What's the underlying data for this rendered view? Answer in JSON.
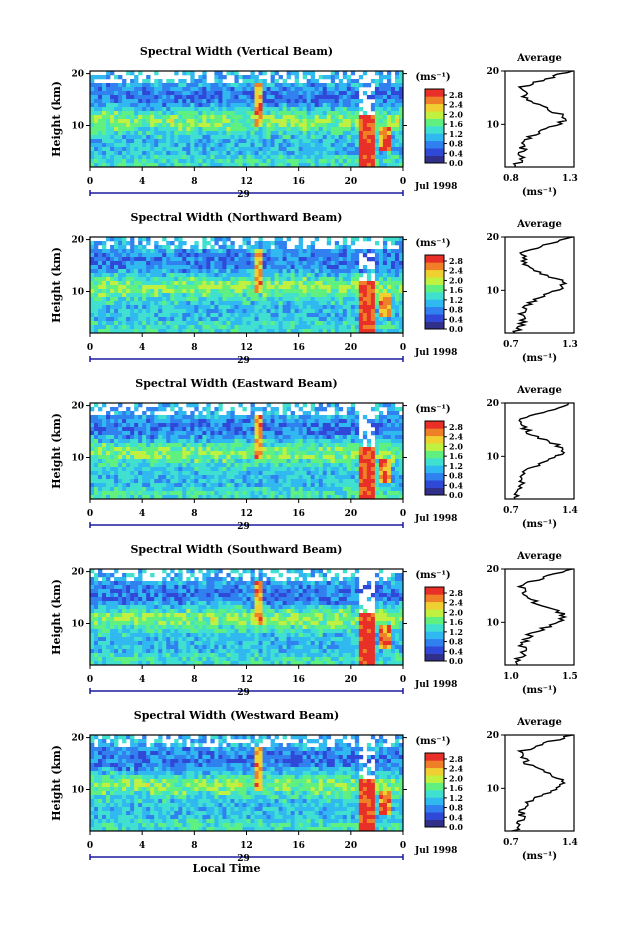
{
  "chart_data": [
    {
      "type": "heatmap",
      "title": "Spectral Width (Vertical Beam)",
      "ylabel": "Height (km)",
      "xticks": [
        "0",
        "4",
        "8",
        "12",
        "16",
        "20",
        "0"
      ],
      "yticks": [
        "20",
        "10"
      ],
      "day_label": "29",
      "date_label": "Jul 1998",
      "colorbar": {
        "unit_label": "(ms⁻¹)",
        "levels": [
          "2.8",
          "2.4",
          "2.0",
          "1.6",
          "1.2",
          "0.8",
          "0.4",
          "0.0"
        ]
      },
      "profile": {
        "title": "Average",
        "xticks": [
          "0.8",
          "1.3"
        ],
        "xlabel": "(ms⁻¹)",
        "yticks": [
          "20",
          "10"
        ],
        "xlim": [
          0.8,
          1.3
        ],
        "ylim": [
          2,
          20
        ]
      }
    },
    {
      "type": "heatmap",
      "title": "Spectral Width (Northward Beam)",
      "ylabel": "Height (km)",
      "xticks": [
        "0",
        "4",
        "8",
        "12",
        "16",
        "20",
        "0"
      ],
      "yticks": [
        "20",
        "10"
      ],
      "day_label": "29",
      "date_label": "Jul 1998",
      "colorbar": {
        "unit_label": "(ms⁻¹)",
        "levels": [
          "2.8",
          "2.4",
          "2.0",
          "1.6",
          "1.2",
          "0.8",
          "0.4",
          "0.0"
        ]
      },
      "profile": {
        "title": "Average",
        "xticks": [
          "0.7",
          "1.3"
        ],
        "xlabel": "(ms⁻¹)",
        "yticks": [
          "20",
          "10"
        ],
        "xlim": [
          0.7,
          1.3
        ],
        "ylim": [
          2,
          20
        ]
      }
    },
    {
      "type": "heatmap",
      "title": "Spectral Width (Eastward Beam)",
      "ylabel": "Height (km)",
      "xticks": [
        "0",
        "4",
        "8",
        "12",
        "16",
        "20",
        "0"
      ],
      "yticks": [
        "20",
        "10"
      ],
      "day_label": "29",
      "date_label": "Jul 1998",
      "colorbar": {
        "unit_label": "(ms⁻¹)",
        "levels": [
          "2.8",
          "2.4",
          "2.0",
          "1.6",
          "1.2",
          "0.8",
          "0.4",
          "0.0"
        ]
      },
      "profile": {
        "title": "Average",
        "xticks": [
          "0.7",
          "1.4"
        ],
        "xlabel": "(ms⁻¹)",
        "yticks": [
          "20",
          "10"
        ],
        "xlim": [
          0.7,
          1.4
        ],
        "ylim": [
          2,
          20
        ]
      }
    },
    {
      "type": "heatmap",
      "title": "Spectral Width (Southward Beam)",
      "ylabel": "Height (km)",
      "xticks": [
        "0",
        "4",
        "8",
        "12",
        "16",
        "20",
        "0"
      ],
      "yticks": [
        "20",
        "10"
      ],
      "day_label": "29",
      "date_label": "Jul 1998",
      "colorbar": {
        "unit_label": "(ms⁻¹)",
        "levels": [
          "2.8",
          "2.4",
          "2.0",
          "1.6",
          "1.2",
          "0.8",
          "0.4",
          "0.0"
        ]
      },
      "profile": {
        "title": "Average",
        "xticks": [
          "1.0",
          "1.5"
        ],
        "xlabel": "(ms⁻¹)",
        "yticks": [
          "20",
          "10"
        ],
        "xlim": [
          0.8,
          1.5
        ],
        "ylim": [
          2,
          20
        ]
      }
    },
    {
      "type": "heatmap",
      "title": "Spectral Width (Westward Beam)",
      "ylabel": "Height (km)",
      "xticks": [
        "0",
        "4",
        "8",
        "12",
        "16",
        "20",
        "0"
      ],
      "yticks": [
        "20",
        "10"
      ],
      "day_label": "29",
      "date_label": "Jul 1998",
      "xlabel": "Local Time",
      "colorbar": {
        "unit_label": "(ms⁻¹)",
        "levels": [
          "2.8",
          "2.4",
          "2.0",
          "1.6",
          "1.2",
          "0.8",
          "0.4",
          "0.0"
        ]
      },
      "profile": {
        "title": "Average",
        "xticks": [
          "0.7",
          "1.4"
        ],
        "xlabel": "(ms⁻¹)",
        "yticks": [
          "20",
          "10"
        ],
        "xlim": [
          0.7,
          1.4
        ],
        "ylim": [
          2,
          20
        ]
      }
    }
  ],
  "colors": [
    "#30308a",
    "#3048d8",
    "#3080f0",
    "#30b8f0",
    "#40e0d0",
    "#60f080",
    "#c0f040",
    "#f0d030",
    "#f08028",
    "#e83028"
  ]
}
